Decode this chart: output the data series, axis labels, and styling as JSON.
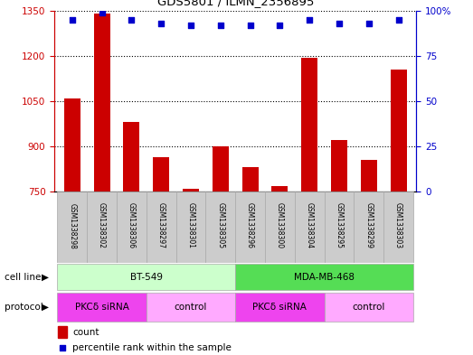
{
  "title": "GDS5801 / ILMN_2356895",
  "samples": [
    "GSM1338298",
    "GSM1338302",
    "GSM1338306",
    "GSM1338297",
    "GSM1338301",
    "GSM1338305",
    "GSM1338296",
    "GSM1338300",
    "GSM1338304",
    "GSM1338295",
    "GSM1338299",
    "GSM1338303"
  ],
  "counts": [
    1060,
    1340,
    980,
    865,
    760,
    900,
    830,
    770,
    1195,
    920,
    855,
    1155
  ],
  "percentile_ranks": [
    95,
    99,
    95,
    93,
    92,
    92,
    92,
    92,
    95,
    93,
    93,
    95
  ],
  "bar_color": "#cc0000",
  "dot_color": "#0000cc",
  "ylim_left": [
    750,
    1350
  ],
  "ylim_right": [
    0,
    100
  ],
  "yticks_left": [
    750,
    900,
    1050,
    1200,
    1350
  ],
  "yticks_right": [
    0,
    25,
    50,
    75,
    100
  ],
  "cell_line_groups": [
    {
      "label": "BT-549",
      "start": 0,
      "end": 5,
      "color": "#ccffcc"
    },
    {
      "label": "MDA-MB-468",
      "start": 6,
      "end": 11,
      "color": "#55dd55"
    }
  ],
  "protocol_groups": [
    {
      "label": "PKCδ siRNA",
      "start": 0,
      "end": 2,
      "color": "#ee44ee"
    },
    {
      "label": "control",
      "start": 3,
      "end": 5,
      "color": "#ffaaff"
    },
    {
      "label": "PKCδ siRNA",
      "start": 6,
      "end": 8,
      "color": "#ee44ee"
    },
    {
      "label": "control",
      "start": 9,
      "end": 11,
      "color": "#ffaaff"
    }
  ],
  "legend_count_label": "count",
  "legend_pct_label": "percentile rank within the sample",
  "tick_color_left": "#cc0000",
  "tick_color_right": "#0000cc"
}
